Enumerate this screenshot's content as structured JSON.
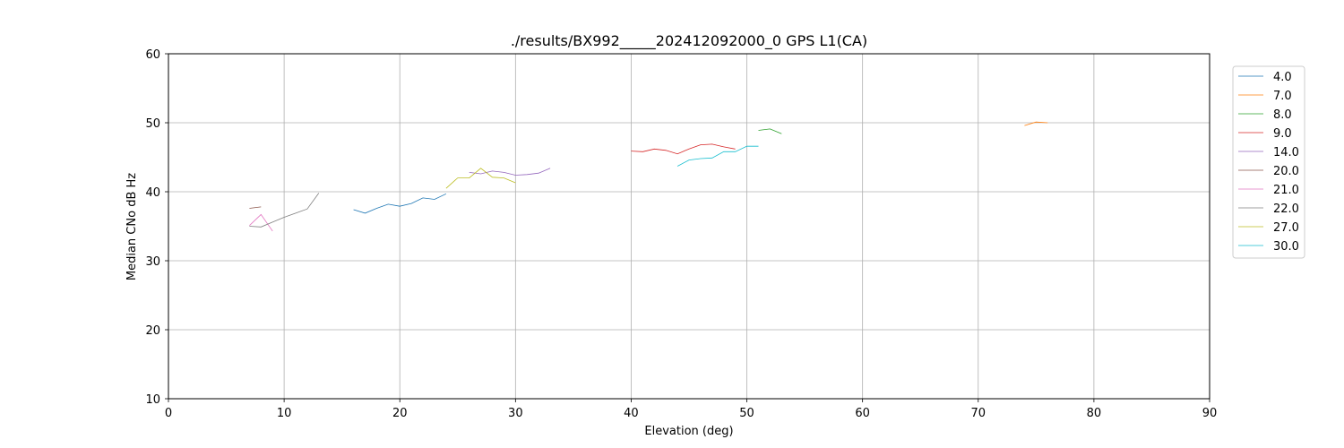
{
  "chart_data": {
    "type": "line",
    "title": "./results/BX992_____202412092000_0 GPS L1(CA)",
    "xlabel": "Elevation (deg)",
    "ylabel": "Median CNo dB Hz",
    "xlim": [
      0,
      90
    ],
    "ylim": [
      10,
      60
    ],
    "xticks": [
      0,
      10,
      20,
      30,
      40,
      50,
      60,
      70,
      80,
      90
    ],
    "yticks": [
      10,
      20,
      30,
      40,
      50,
      60
    ],
    "grid": true,
    "legend_position": "right",
    "series": [
      {
        "name": "4.0",
        "color": "#1f77b4",
        "x": [
          16,
          17,
          18,
          19,
          20,
          21,
          22,
          23,
          24
        ],
        "y": [
          37.4,
          36.9,
          37.6,
          38.2,
          37.9,
          38.3,
          39.1,
          38.9,
          39.7
        ]
      },
      {
        "name": "7.0",
        "color": "#ff7f0e",
        "x": [
          74,
          75,
          76
        ],
        "y": [
          49.6,
          50.1,
          50.0
        ]
      },
      {
        "name": "8.0",
        "color": "#2ca02c",
        "x": [
          51,
          52,
          53
        ],
        "y": [
          48.9,
          49.1,
          48.4
        ]
      },
      {
        "name": "9.0",
        "color": "#d62728",
        "x": [
          40,
          41,
          42,
          43,
          44,
          45,
          46,
          47,
          48,
          49
        ],
        "y": [
          45.9,
          45.8,
          46.2,
          46.0,
          45.5,
          46.2,
          46.8,
          46.9,
          46.5,
          46.2
        ]
      },
      {
        "name": "14.0",
        "color": "#9467bd",
        "x": [
          26,
          27,
          28,
          29,
          30,
          31,
          32,
          33
        ],
        "y": [
          42.8,
          42.6,
          43.0,
          42.8,
          42.4,
          42.5,
          42.7,
          43.4
        ]
      },
      {
        "name": "20.0",
        "color": "#8c564b",
        "x": [
          7,
          8
        ],
        "y": [
          37.6,
          37.8
        ]
      },
      {
        "name": "21.0",
        "color": "#e377c2",
        "x": [
          7,
          8,
          9
        ],
        "y": [
          35.1,
          36.7,
          34.3
        ]
      },
      {
        "name": "22.0",
        "color": "#7f7f7f",
        "x": [
          7,
          8,
          9,
          10,
          11,
          12,
          13
        ],
        "y": [
          35.0,
          34.9,
          35.6,
          36.3,
          36.9,
          37.5,
          39.8
        ]
      },
      {
        "name": "27.0",
        "color": "#bcbd22",
        "x": [
          24,
          25,
          26,
          27,
          28,
          29,
          30
        ],
        "y": [
          40.5,
          42.0,
          42.0,
          43.4,
          42.1,
          42.0,
          41.3
        ]
      },
      {
        "name": "30.0",
        "color": "#17becf",
        "x": [
          44,
          45,
          46,
          47,
          48,
          49,
          50,
          51
        ],
        "y": [
          43.7,
          44.6,
          44.8,
          44.9,
          45.8,
          45.8,
          46.6,
          46.6
        ]
      }
    ]
  }
}
